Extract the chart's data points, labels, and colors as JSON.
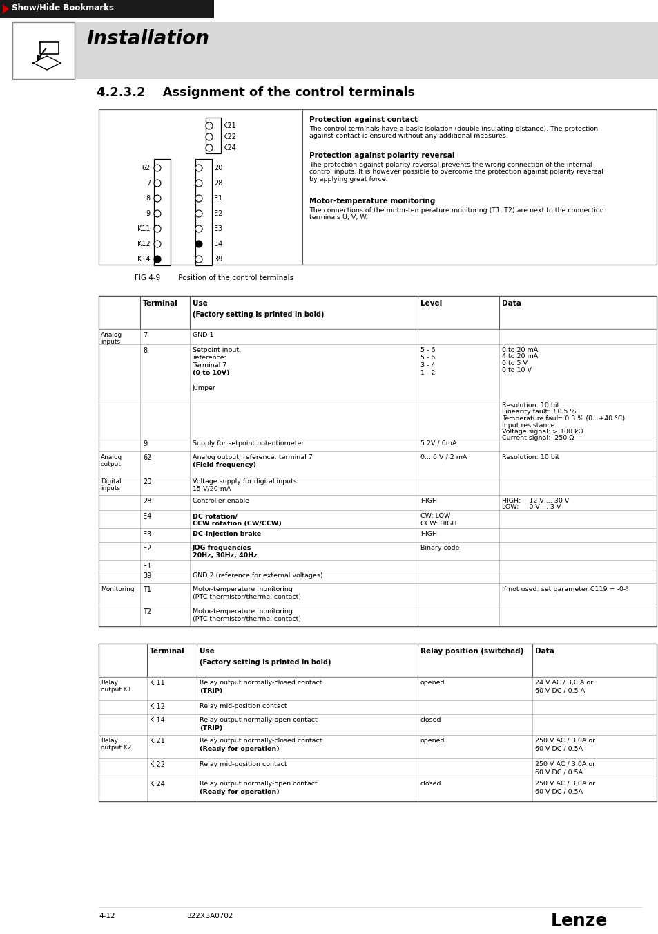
{
  "page_bg": "#ffffff",
  "header_bg": "#1a1a1a",
  "header_text": "Show/Hide Bookmarks",
  "install_text": "Installation",
  "section_title": "4.2.3.2    Assignment of the control terminals",
  "fig_caption": "FIG 4-9        Position of the control terminals",
  "footer_left": "4-12",
  "footer_code": "822XBA0702",
  "footer_brand": "Lenze",
  "protection_title": "Protection against contact",
  "protection_text1": "The control terminals have a basic isolation (double insulating distance). The protection\nagainst contact is ensured without any additional measures.",
  "polarity_title": "Protection against polarity reversal",
  "polarity_text": "The protection against polarity reversal prevents the wrong connection of the internal\ncontrol inputs. It is however possible to overcome the protection against polarity reversal\nby applying great force.",
  "motor_title": "Motor-temperature monitoring",
  "motor_text": "The connections of the motor-temperature monitoring (T1, T2) are next to the connection\nterminals U, V, W.",
  "left_labels": [
    "62",
    "7",
    "8",
    "9",
    "K11",
    "K12",
    "K14"
  ],
  "right_labels": [
    "20",
    "28",
    "E1",
    "E2",
    "E3",
    "E4",
    "39"
  ],
  "k_labels": [
    "K21",
    "K22",
    "K24"
  ],
  "filled_right": [
    "E4"
  ],
  "filled_left": [
    "K14"
  ],
  "table1_rows": [
    [
      "Analog\ninputs",
      "7",
      [
        [
          "GND 1",
          false
        ]
      ],
      "",
      ""
    ],
    [
      "",
      "8",
      [
        [
          "Setpoint input,",
          false
        ],
        [
          "reference:",
          false
        ],
        [
          "Terminal 7",
          false
        ],
        [
          "(0 to 10V)",
          true
        ],
        [
          "",
          false
        ],
        [
          "Jumper",
          false
        ]
      ],
      "5 - 6\n5 - 6\n3 - 4\n1 - 2",
      "0 to 20 mA\n4 to 20 mA\n0 to 5 V\n0 to 10 V"
    ],
    [
      "",
      "",
      [],
      "",
      "Resolution: 10 bit\nLinearity fault: ±0.5 %\nTemperature fault: 0.3 % (0...+40 °C)\nInput resistance\nVoltage signal: > 100 kΩ\nCurrent signal:  250 Ω"
    ],
    [
      "",
      "9",
      [
        [
          "Supply for setpoint potentiometer",
          false
        ]
      ],
      "5.2V / 6mA",
      ""
    ],
    [
      "Analog\noutput",
      "62",
      [
        [
          "Analog output, reference: terminal 7",
          false
        ],
        [
          "(Field frequency)",
          true
        ]
      ],
      "0... 6 V / 2 mA",
      "Resolution: 10 bit"
    ],
    [
      "Digital\ninputs",
      "20",
      [
        [
          "Voltage supply for digital inputs",
          false
        ],
        [
          "15 V/20 mA",
          false
        ]
      ],
      "",
      ""
    ],
    [
      "",
      "28",
      [
        [
          "Controller enable",
          false
        ]
      ],
      "HIGH",
      "HIGH:    12 V ... 30 V\nLOW:     0 V ... 3 V"
    ],
    [
      "",
      "E4",
      [
        [
          "DC rotation/",
          true
        ],
        [
          "CCW rotation (CW/CCW)",
          true
        ]
      ],
      "CW: LOW\nCCW: HIGH",
      ""
    ],
    [
      "",
      "E3",
      [
        [
          "DC-injection brake",
          true
        ]
      ],
      "HIGH",
      ""
    ],
    [
      "",
      "E2",
      [
        [
          "JOG frequencies",
          true
        ],
        [
          "20Hz, 30Hz, 40Hz",
          true
        ]
      ],
      "Binary code",
      ""
    ],
    [
      "",
      "E1",
      [],
      "",
      ""
    ],
    [
      "",
      "39",
      [
        [
          "GND 2 (reference for external voltages)",
          false
        ]
      ],
      "",
      ""
    ],
    [
      "Monitoring",
      "T1",
      [
        [
          "Motor-temperature monitoring",
          false
        ],
        [
          "(PTC thermistor/thermal contact)",
          false
        ]
      ],
      "",
      "If not used: set parameter C119 = -0-!"
    ],
    [
      "",
      "T2",
      [
        [
          "Motor-temperature monitoring",
          false
        ],
        [
          "(PTC thermistor/thermal contact)",
          false
        ]
      ],
      "",
      ""
    ]
  ],
  "table1_row_heights": [
    22,
    80,
    55,
    20,
    35,
    28,
    22,
    26,
    20,
    26,
    14,
    20,
    32,
    30
  ],
  "table2_rows": [
    [
      "Relay\noutput K1",
      "K 11",
      [
        [
          "Relay output normally-closed contact",
          false
        ],
        [
          "(TRIP)",
          true
        ]
      ],
      "opened",
      "24 V AC / 3,0 A or\n60 V DC / 0.5 A"
    ],
    [
      "",
      "K 12",
      [
        [
          "Relay mid-position contact",
          false
        ]
      ],
      "",
      ""
    ],
    [
      "",
      "K 14",
      [
        [
          "Relay output normally-open contact",
          false
        ],
        [
          "(TRIP)",
          true
        ]
      ],
      "closed",
      ""
    ],
    [
      "Relay\noutput K2",
      "K 21",
      [
        [
          "Relay output normally-closed contact",
          false
        ],
        [
          "(Ready for operation)",
          true
        ]
      ],
      "opened",
      "250 V AC / 3,0A or\n60 V DC / 0.5A"
    ],
    [
      "",
      "K 22",
      [
        [
          "Relay mid-position contact",
          false
        ]
      ],
      "",
      "250 V AC / 3,0A or\n60 V DC / 0.5A"
    ],
    [
      "",
      "K 24",
      [
        [
          "Relay output normally-open contact",
          false
        ],
        [
          "(Ready for operation)",
          true
        ]
      ],
      "closed",
      "250 V AC / 3,0A or\n60 V DC / 0.5A"
    ]
  ],
  "table2_row_heights": [
    34,
    20,
    30,
    34,
    28,
    34
  ]
}
